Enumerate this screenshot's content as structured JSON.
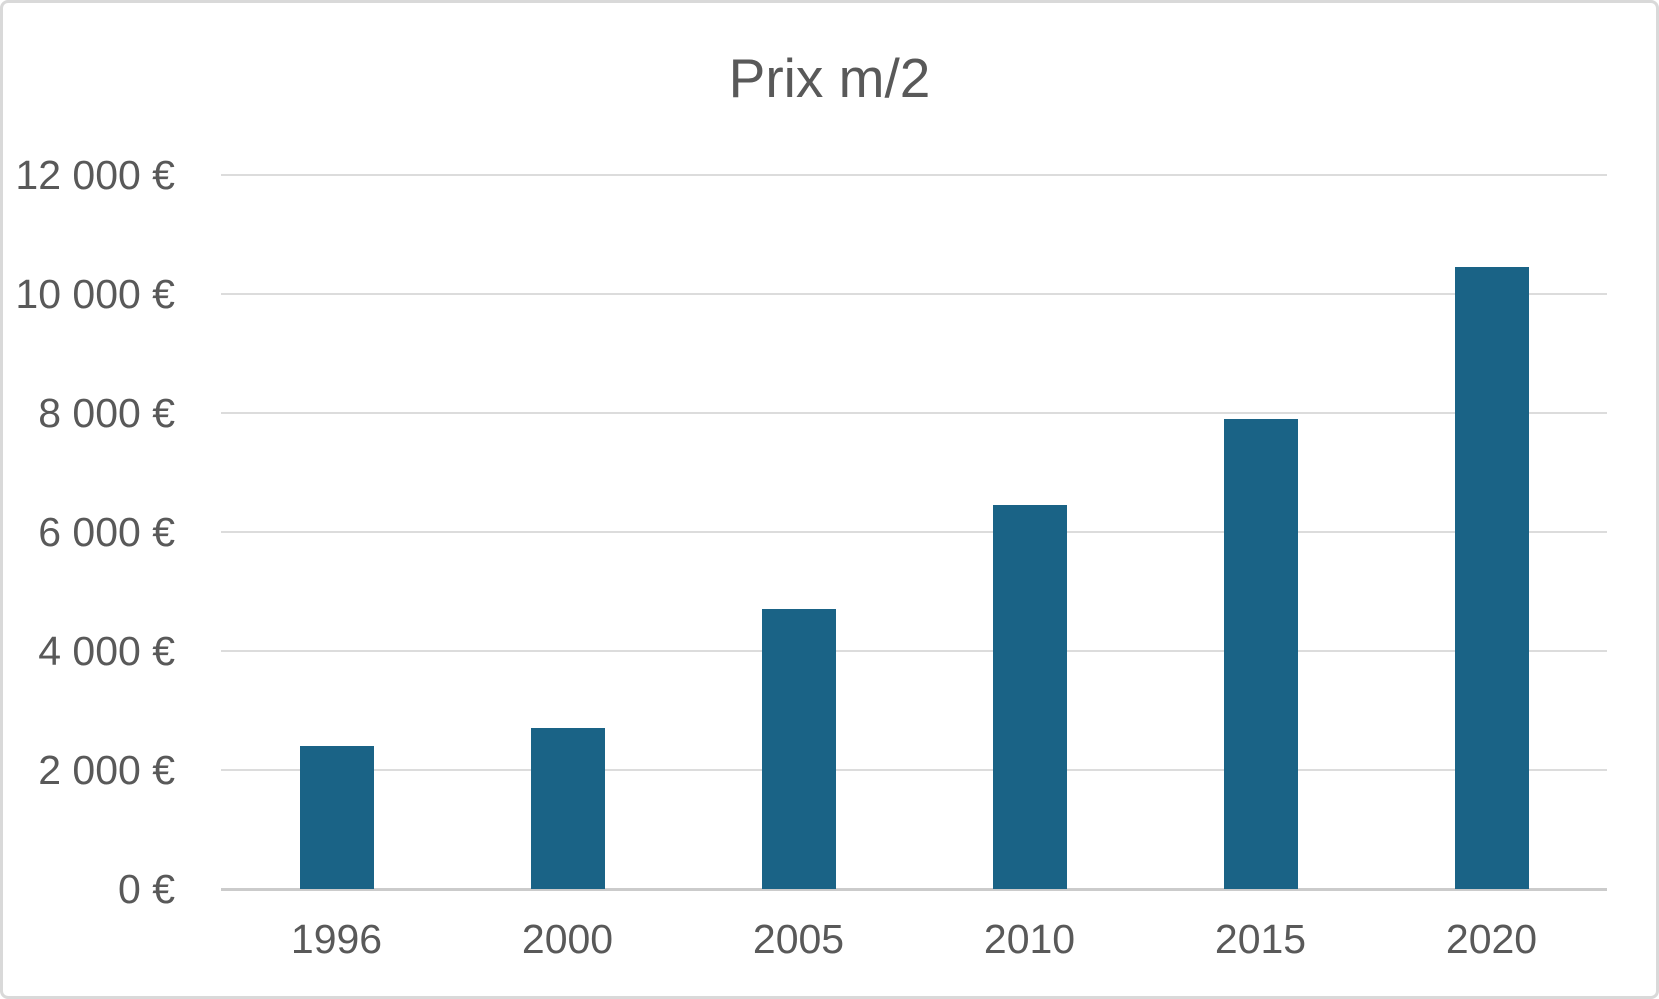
{
  "chart_data": {
    "type": "bar",
    "title": "Prix m/2",
    "categories": [
      "1996",
      "2000",
      "2005",
      "2010",
      "2015",
      "2020"
    ],
    "values": [
      2400,
      2700,
      4700,
      6450,
      7900,
      10450
    ],
    "xlabel": "",
    "ylabel": "",
    "ylim": [
      0,
      12000
    ],
    "y_ticks": [
      {
        "value": 0,
        "label": "0 €"
      },
      {
        "value": 2000,
        "label": "2 000 €"
      },
      {
        "value": 4000,
        "label": "4 000 €"
      },
      {
        "value": 6000,
        "label": "6 000 €"
      },
      {
        "value": 8000,
        "label": "8 000 €"
      },
      {
        "value": 10000,
        "label": "10 000 €"
      },
      {
        "value": 12000,
        "label": "12 000 €"
      }
    ],
    "grid": true,
    "legend": false,
    "colors": {
      "bar": "#1a6386",
      "gridline": "#dcdcdc",
      "axis_line": "#cbcbcb",
      "text": "#595959",
      "card_border": "#d9d9d9",
      "background": "#ffffff"
    }
  }
}
